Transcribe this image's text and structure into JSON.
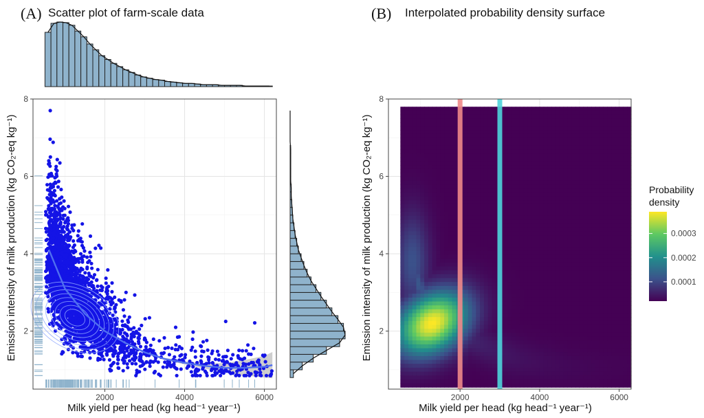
{
  "figure": {
    "panel_a": {
      "letter": "(A)",
      "title": "Scatter plot of farm-scale data"
    },
    "panel_b": {
      "letter": "(B)",
      "title": "Interpolated probability density surface"
    }
  },
  "chart_data": [
    {
      "type": "scatter",
      "panel": "A",
      "title": "Scatter plot of farm-scale data",
      "xlabel": "Milk yield per head (kg head⁻¹ year⁻¹)",
      "ylabel": "Emission intensity of milk production (kg CO₂-eq kg⁻¹)",
      "xlim": [
        200,
        6300
      ],
      "ylim": [
        0.5,
        8
      ],
      "x_ticks": [
        "2000",
        "4000",
        "6000"
      ],
      "x_tick_values": [
        2000,
        4000,
        6000
      ],
      "y_ticks": [
        "2",
        "4",
        "6",
        "8"
      ],
      "y_tick_values": [
        2,
        4,
        6,
        8
      ],
      "grid": true,
      "point_color": "#1414e6",
      "smooth_fit": {
        "color": "#4f6ff0",
        "band_color": "#bdbdbd",
        "x": [
          600,
          1000,
          1500,
          2000,
          2500,
          3000,
          3500,
          4000,
          4500,
          5000,
          5500,
          6000,
          6200
        ],
        "y": [
          4.1,
          3.1,
          2.45,
          2.0,
          1.7,
          1.45,
          1.28,
          1.18,
          1.1,
          1.05,
          1.05,
          1.08,
          1.12
        ],
        "band_low": [
          3.85,
          2.95,
          2.4,
          1.97,
          1.67,
          1.42,
          1.25,
          1.14,
          1.03,
          0.93,
          0.85,
          0.8,
          0.78
        ],
        "band_high": [
          4.35,
          3.25,
          2.5,
          2.03,
          1.73,
          1.48,
          1.31,
          1.22,
          1.17,
          1.17,
          1.25,
          1.36,
          1.46
        ]
      },
      "density_contours_color": "#8fa8ff",
      "marginal_x_hist": {
        "fill": "#8fb3cc",
        "bin_edges": [
          500,
          650,
          800,
          950,
          1100,
          1250,
          1400,
          1550,
          1700,
          1850,
          2000,
          2150,
          2300,
          2450,
          2600,
          2750,
          2900,
          3050,
          3200,
          3350,
          3500,
          3650,
          3800,
          3950,
          4100,
          4250,
          4400,
          4550,
          4700,
          4850,
          5000,
          5150,
          5300,
          5450,
          5600,
          5750,
          5900,
          6050,
          6200
        ],
        "counts": [
          0.84,
          0.98,
          1.0,
          0.99,
          0.95,
          0.86,
          0.77,
          0.66,
          0.57,
          0.48,
          0.42,
          0.36,
          0.31,
          0.26,
          0.22,
          0.18,
          0.15,
          0.13,
          0.11,
          0.1,
          0.08,
          0.07,
          0.06,
          0.05,
          0.05,
          0.04,
          0.03,
          0.03,
          0.03,
          0.02,
          0.02,
          0.02,
          0.02,
          0.01,
          0.01,
          0.01,
          0.01,
          0.01
        ]
      },
      "marginal_y_hist": {
        "fill": "#8fb3cc",
        "bin_edges": [
          0.8,
          1.0,
          1.2,
          1.4,
          1.6,
          1.8,
          2.0,
          2.2,
          2.4,
          2.6,
          2.8,
          3.0,
          3.2,
          3.4,
          3.6,
          3.8,
          4.0,
          4.2,
          4.4,
          4.6,
          4.8,
          5.0,
          5.2,
          5.4,
          5.6,
          5.8,
          6.0,
          6.2,
          6.4,
          6.6,
          6.8,
          7.0,
          7.2,
          7.4,
          7.6,
          7.8
        ],
        "counts": [
          0.06,
          0.22,
          0.42,
          0.66,
          0.9,
          1.0,
          0.97,
          0.87,
          0.76,
          0.66,
          0.56,
          0.47,
          0.38,
          0.31,
          0.25,
          0.2,
          0.15,
          0.12,
          0.09,
          0.07,
          0.05,
          0.04,
          0.03,
          0.02,
          0.02,
          0.01,
          0.01,
          0.01,
          0.01,
          0.01,
          0.0,
          0.0,
          0.0,
          0.0,
          0.0
        ]
      },
      "rug_color": "#8fb3cc"
    },
    {
      "type": "heatmap",
      "panel": "B",
      "title": "Interpolated probability density surface",
      "xlabel": "Milk yield per head (kg head⁻¹ year⁻¹)",
      "ylabel": "Emission intensity of milk production (kg CO₂-eq kg⁻¹)",
      "xlim": [
        200,
        6300
      ],
      "ylim": [
        0.5,
        8
      ],
      "data_extent": {
        "x": [
          500,
          6300
        ],
        "y": [
          0.55,
          7.8
        ]
      },
      "x_ticks": [
        "2000",
        "4000",
        "6000"
      ],
      "x_tick_values": [
        2000,
        4000,
        6000
      ],
      "y_ticks": [
        "2",
        "4",
        "6",
        "8"
      ],
      "y_tick_values": [
        2,
        4,
        6,
        8
      ],
      "grid": true,
      "density_peak": {
        "x": 1300,
        "y": 2.2,
        "value": 0.00039
      },
      "vertical_lines": [
        {
          "x": 2000,
          "color": "#f08a8a"
        },
        {
          "x": 3000,
          "color": "#4fd4dc"
        }
      ],
      "legend": {
        "title_line1": "Probability",
        "title_line2": "density",
        "position": "right",
        "ticks": [
          "0.0003",
          "0.0002",
          "0.0001"
        ],
        "tick_values": [
          0.0003,
          0.0002,
          0.0001
        ],
        "range": [
          2e-05,
          0.00039
        ],
        "colors": [
          "#440154",
          "#3b528b",
          "#21918c",
          "#5ec962",
          "#fde725"
        ]
      }
    }
  ]
}
